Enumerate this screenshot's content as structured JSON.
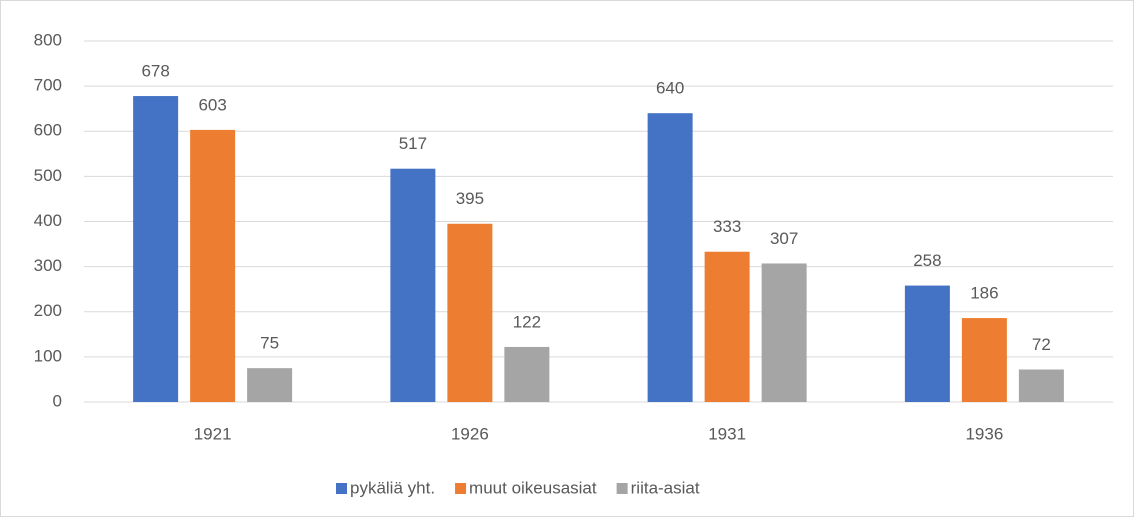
{
  "chart_data": {
    "type": "bar",
    "categories": [
      "1921",
      "1926",
      "1931",
      "1936"
    ],
    "series": [
      {
        "name": "pykäliä yht.",
        "color": "#4472c4",
        "values": [
          678,
          517,
          640,
          258
        ]
      },
      {
        "name": "muut oikeusasiat",
        "color": "#ed7d31",
        "values": [
          603,
          395,
          333,
          186
        ]
      },
      {
        "name": "riita-asiat",
        "color": "#a5a5a5",
        "values": [
          75,
          122,
          307,
          72
        ]
      }
    ],
    "ylim": [
      0,
      800
    ],
    "yticks": [
      0,
      100,
      200,
      300,
      400,
      500,
      600,
      700,
      800
    ],
    "grid": true,
    "legend": "bottom"
  }
}
